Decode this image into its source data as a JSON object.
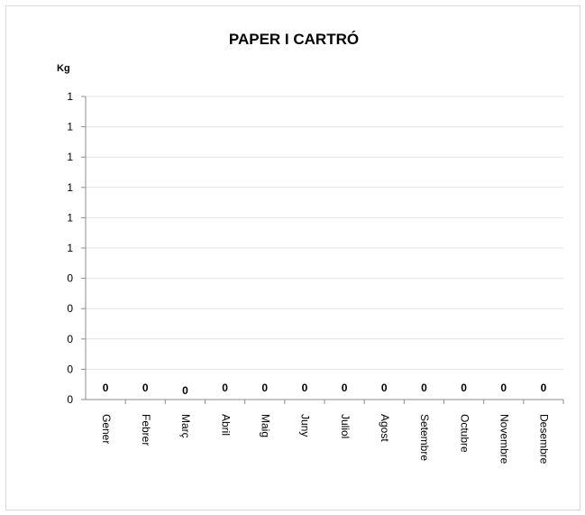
{
  "chart_data": {
    "type": "bar",
    "title": "PAPER I CARTRÓ",
    "ylabel": "Kg",
    "xlabel": "",
    "categories": [
      "Gener",
      "Febrer",
      "Març",
      "Abril",
      "Maig",
      "Juny",
      "Juliol",
      "Agost",
      "Setembre",
      "Octubre",
      "Novembre",
      "Desembre"
    ],
    "values": [
      0,
      0,
      0,
      0,
      0,
      0,
      0,
      0,
      0,
      0,
      0,
      0
    ],
    "data_labels": [
      "0",
      "0",
      "0",
      "0",
      "0",
      "0",
      "0",
      "0",
      "0",
      "0",
      "0",
      "0"
    ],
    "y_tick_labels": [
      "0",
      "0",
      "0",
      "0",
      "0",
      "1",
      "1",
      "1",
      "1",
      "1",
      "1"
    ],
    "ylim": [
      0,
      1
    ],
    "grid": true,
    "legend": "none",
    "colors": {
      "grid": "#e4e4e4",
      "axis": "#8c8c8c",
      "text": "#000000"
    }
  }
}
